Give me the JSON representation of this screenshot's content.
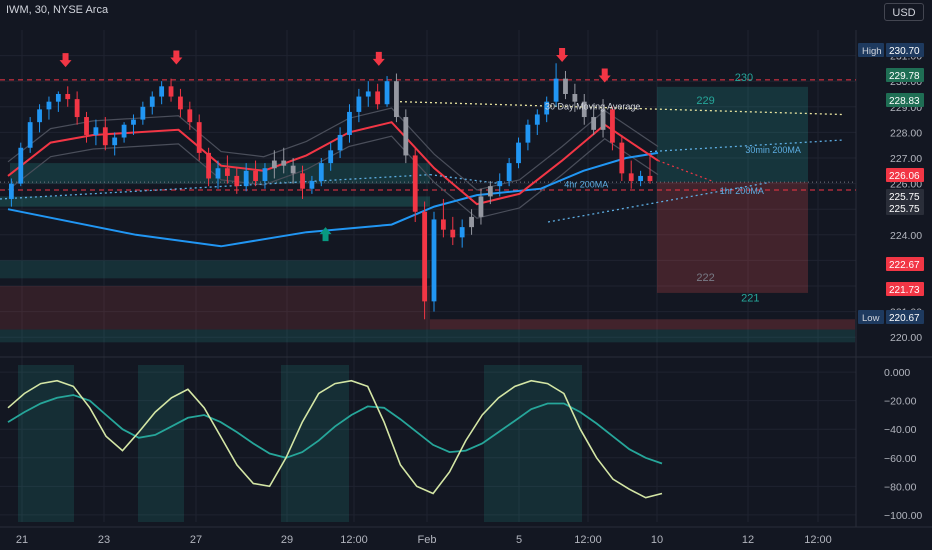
{
  "header": {
    "title": "IWM, 30, NYSE Arca",
    "currency": "USD"
  },
  "chart_data": [
    {
      "type": "candlestick",
      "symbol": "IWM",
      "interval": "30",
      "exchange": "NYSE Arca",
      "y_range": [
        219.5,
        232.0
      ],
      "price_ticks": [
        231.0,
        230.0,
        229.0,
        228.0,
        227.0,
        226.0,
        225.0,
        224.0,
        223.0,
        222.0,
        221.0,
        220.0
      ],
      "x_ticks": [
        "21",
        "23",
        "27",
        "29",
        "12:00",
        "Feb",
        "5",
        "12:00",
        "10",
        "12",
        "12:00"
      ],
      "price_labels": [
        {
          "tag": "High",
          "value": "230.70",
          "color": "#1e3a5f"
        },
        {
          "tag": "",
          "value": "229.78",
          "color": "#1f6e54"
        },
        {
          "tag": "",
          "value": "228.83",
          "color": "#1f6e54"
        },
        {
          "tag": "",
          "value": "226.06",
          "color": "#f23645"
        },
        {
          "tag": "",
          "value": "225.75",
          "color": "#2a2e39"
        },
        {
          "tag": "",
          "value": "225.75",
          "color": "#2a2e39"
        },
        {
          "tag": "",
          "value": "222.67",
          "color": "#f23645"
        },
        {
          "tag": "",
          "value": "221.73",
          "color": "#f23645"
        },
        {
          "tag": "Low",
          "value": "220.67",
          "color": "#1e3a5f"
        }
      ],
      "annotations": [
        {
          "text": "30 Day Moving Average",
          "x": 25.2,
          "y": 228.9,
          "color": "#d1d4dc"
        },
        {
          "text": "4hr 200MA",
          "x": 26.1,
          "y": 225.85,
          "color": "#5dade2"
        },
        {
          "text": "30min 200MA",
          "x": 34.6,
          "y": 227.2,
          "color": "#5dade2"
        },
        {
          "text": "1hr 200MA",
          "x": 33.4,
          "y": 225.6,
          "color": "#5dade2"
        }
      ],
      "target_labels": [
        {
          "text": "230",
          "x": 34.1,
          "y": 230.0,
          "color": "#26a69a"
        },
        {
          "text": "229",
          "x": 32.3,
          "y": 229.1,
          "color": "#26a69a"
        },
        {
          "text": "222",
          "x": 32.3,
          "y": 222.2,
          "color": "#787b86"
        },
        {
          "text": "221",
          "x": 34.4,
          "y": 221.4,
          "color": "#26a69a"
        }
      ],
      "levels": [
        {
          "name": "high-line",
          "value": 230.05,
          "color": "#f23645",
          "style": "dashed"
        },
        {
          "name": "mid-line",
          "value": 225.75,
          "color": "#f23645",
          "style": "dashed"
        },
        {
          "name": "last-line",
          "value": 226.06,
          "color": "#787b86",
          "style": "dotted"
        }
      ],
      "arrows": [
        {
          "dir": "down",
          "x": 2.7,
          "y": 230.55
        },
        {
          "dir": "down",
          "x": 7.9,
          "y": 230.65
        },
        {
          "dir": "down",
          "x": 17.4,
          "y": 230.6
        },
        {
          "dir": "down",
          "x": 26.0,
          "y": 230.75
        },
        {
          "dir": "down",
          "x": 28.0,
          "y": 229.95
        },
        {
          "dir": "up",
          "x": 14.9,
          "y": 224.3
        }
      ],
      "candles": [
        [
          225.4,
          226.2,
          225.1,
          226.0
        ],
        [
          226.0,
          227.6,
          225.9,
          227.4
        ],
        [
          227.4,
          228.6,
          227.2,
          228.4
        ],
        [
          228.4,
          229.1,
          228.0,
          228.9
        ],
        [
          228.9,
          229.4,
          228.5,
          229.2
        ],
        [
          229.2,
          229.6,
          228.8,
          229.5
        ],
        [
          229.5,
          229.8,
          229.0,
          229.3
        ],
        [
          229.3,
          229.6,
          228.3,
          228.6
        ],
        [
          228.6,
          228.8,
          227.6,
          227.9
        ],
        [
          227.9,
          228.5,
          227.5,
          228.2
        ],
        [
          228.2,
          228.6,
          227.3,
          227.5
        ],
        [
          227.5,
          228.0,
          227.1,
          227.8
        ],
        [
          227.8,
          228.4,
          227.6,
          228.3
        ],
        [
          228.3,
          228.7,
          227.9,
          228.5
        ],
        [
          228.5,
          229.2,
          228.3,
          229.0
        ],
        [
          229.0,
          229.6,
          228.7,
          229.4
        ],
        [
          229.4,
          230.0,
          229.1,
          229.8
        ],
        [
          229.8,
          230.1,
          229.2,
          229.4
        ],
        [
          229.4,
          229.7,
          228.6,
          228.9
        ],
        [
          228.9,
          229.2,
          228.1,
          228.4
        ],
        [
          228.4,
          228.7,
          226.9,
          227.2
        ],
        [
          227.2,
          227.4,
          225.9,
          226.2
        ],
        [
          226.2,
          226.9,
          225.8,
          226.6
        ],
        [
          226.6,
          227.1,
          226.0,
          226.3
        ],
        [
          226.3,
          226.6,
          225.6,
          225.9
        ],
        [
          225.9,
          226.8,
          225.7,
          226.5
        ],
        [
          226.5,
          226.9,
          225.9,
          226.1
        ],
        [
          226.1,
          226.8,
          225.8,
          226.6
        ],
        [
          226.6,
          227.3,
          226.2,
          226.9
        ],
        [
          226.9,
          227.4,
          226.4,
          226.7
        ],
        [
          226.7,
          227.0,
          226.0,
          226.4
        ],
        [
          226.4,
          226.7,
          225.4,
          225.8
        ],
        [
          225.8,
          226.3,
          225.6,
          226.1
        ],
        [
          226.1,
          227.0,
          225.9,
          226.8
        ],
        [
          226.8,
          227.6,
          226.5,
          227.3
        ],
        [
          227.3,
          228.2,
          227.0,
          227.9
        ],
        [
          227.9,
          229.1,
          227.6,
          228.8
        ],
        [
          228.8,
          229.7,
          228.4,
          229.4
        ],
        [
          229.4,
          230.0,
          229.0,
          229.6
        ],
        [
          229.6,
          229.9,
          228.9,
          229.1
        ],
        [
          229.1,
          230.2,
          229.0,
          230.0
        ],
        [
          230.0,
          230.3,
          228.4,
          228.6
        ],
        [
          228.6,
          228.9,
          226.8,
          227.1
        ],
        [
          227.1,
          227.4,
          224.5,
          224.9
        ],
        [
          224.9,
          225.3,
          220.7,
          221.4
        ],
        [
          221.4,
          224.9,
          221.0,
          224.6
        ],
        [
          224.6,
          225.4,
          223.9,
          224.2
        ],
        [
          224.2,
          224.7,
          223.6,
          223.9
        ],
        [
          223.9,
          224.6,
          223.5,
          224.3
        ],
        [
          224.3,
          225.0,
          224.0,
          224.7
        ],
        [
          224.7,
          225.8,
          224.4,
          225.5
        ],
        [
          225.5,
          226.1,
          225.2,
          225.9
        ],
        [
          225.9,
          226.4,
          225.5,
          226.1
        ],
        [
          226.1,
          227.0,
          225.9,
          226.8
        ],
        [
          226.8,
          227.8,
          226.6,
          227.6
        ],
        [
          227.6,
          228.5,
          227.3,
          228.3
        ],
        [
          228.3,
          228.9,
          227.9,
          228.7
        ],
        [
          228.7,
          229.4,
          228.4,
          229.2
        ],
        [
          229.2,
          230.7,
          229.0,
          230.1
        ],
        [
          230.1,
          230.4,
          229.3,
          229.5
        ],
        [
          229.5,
          229.9,
          228.8,
          229.2
        ],
        [
          229.2,
          229.5,
          228.3,
          228.6
        ],
        [
          228.6,
          229.1,
          227.9,
          228.1
        ],
        [
          228.1,
          229.3,
          227.8,
          228.9
        ],
        [
          228.9,
          229.0,
          227.3,
          227.6
        ],
        [
          227.6,
          227.9,
          226.1,
          226.4
        ],
        [
          226.4,
          226.9,
          225.8,
          226.1
        ],
        [
          226.1,
          226.5,
          225.9,
          226.3
        ],
        [
          226.3,
          227.2,
          226.0,
          226.1
        ]
      ],
      "lines": [
        {
          "name": "30min 200MA",
          "color": "#2196f3",
          "points": [
            [
              0,
              225.0
            ],
            [
              6,
              224.0
            ],
            [
              10,
              223.55
            ],
            [
              14,
              224.1
            ],
            [
              18,
              224.4
            ],
            [
              20,
              225.1
            ],
            [
              22,
              225.55
            ],
            [
              25,
              225.8
            ],
            [
              27,
              226.5
            ],
            [
              29,
              227.0
            ],
            [
              30.5,
              227.2
            ]
          ]
        },
        {
          "name": "EMA fast",
          "color": "#f23645",
          "points": [
            [
              0,
              226.3
            ],
            [
              2,
              227.6
            ],
            [
              4,
              227.9
            ],
            [
              6,
              228.0
            ],
            [
              8,
              228.1
            ],
            [
              10,
              226.7
            ],
            [
              12,
              226.5
            ],
            [
              14,
              227.1
            ],
            [
              16,
              228.0
            ],
            [
              18,
              228.4
            ],
            [
              20,
              226.6
            ],
            [
              22,
              225.2
            ],
            [
              24,
              225.6
            ],
            [
              26,
              226.9
            ],
            [
              28,
              228.3
            ],
            [
              30.5,
              226.9
            ]
          ]
        }
      ],
      "osc": {
        "y_range": [
          -105,
          5
        ],
        "ticks": [
          0.0,
          -20.0,
          -40.0,
          -60.0,
          -80.0,
          -100.0
        ],
        "tick_labels": [
          "0.000",
          "−20.00",
          "−40.00",
          "−60.00",
          "−80.00",
          "−100.00"
        ],
        "fast": [
          -25,
          -15,
          -8,
          -6,
          -10,
          -25,
          -45,
          -55,
          -42,
          -28,
          -18,
          -12,
          -25,
          -45,
          -65,
          -78,
          -80,
          -60,
          -35,
          -15,
          -8,
          -6,
          -10,
          -35,
          -65,
          -80,
          -85,
          -70,
          -48,
          -30,
          -18,
          -10,
          -6,
          -8,
          -15,
          -40,
          -60,
          -75,
          -82,
          -88,
          -85
        ],
        "slow": [
          -35,
          -28,
          -22,
          -18,
          -16,
          -20,
          -30,
          -40,
          -46,
          -44,
          -38,
          -32,
          -30,
          -35,
          -42,
          -50,
          -57,
          -60,
          -56,
          -48,
          -38,
          -30,
          -24,
          -25,
          -33,
          -42,
          -51,
          -56,
          -55,
          -50,
          -42,
          -34,
          -26,
          -22,
          -22,
          -28,
          -36,
          -45,
          -54,
          -60,
          -64
        ]
      }
    }
  ]
}
